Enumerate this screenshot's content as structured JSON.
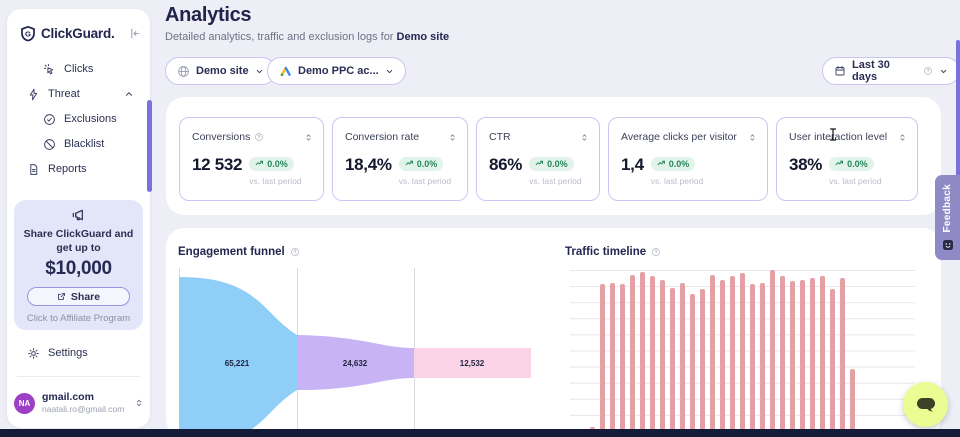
{
  "colors": {
    "bg": "#edeef6",
    "navy": "#23264f",
    "accent-purple": "#7b70e0",
    "border-purple": "#cbc6f3",
    "promo-bg": "#e2e6f8",
    "badge-bg": "#e2f4e9",
    "badge-green": "#27855c",
    "funnel-blue": "#8fcef7",
    "funnel-purple": "#c8b4f4",
    "funnel-pink": "#fbd3e7",
    "bar-pink": "#e5a0a5",
    "strip": "#141b38",
    "feedback-bg": "#8f89c6",
    "chat-bg": "#eafc92",
    "avatar-bg": "#9b3fc4"
  },
  "sidebar": {
    "logo_text": "ClickGuard.",
    "logo_monogram": "G",
    "nav": [
      {
        "label": "Clicks"
      },
      {
        "label": "Threat"
      },
      {
        "label": "Exclusions"
      },
      {
        "label": "Blacklist"
      },
      {
        "label": "Reports"
      }
    ],
    "promo": {
      "line1": "Share ClickGuard and",
      "line2": "get up to",
      "amount": "$10,000",
      "share_label": "Share",
      "footer": "Click to Affiliate Program"
    },
    "settings_label": "Settings",
    "user": {
      "initials": "NA",
      "name": "gmail.com",
      "email": "naatali.ro@gmail.com"
    }
  },
  "header": {
    "title": "Analytics",
    "subtitle_prefix": "Detailed analytics, traffic and exclusion logs for ",
    "subtitle_target": "Demo site",
    "site_selector_label": "Demo site",
    "account_selector_label": "Demo PPC ac...",
    "date_range_label": "Last 30 days"
  },
  "kpis": [
    {
      "label": "Conversions",
      "value": "12 532",
      "change": "0.0%",
      "compare_label": "vs. last period"
    },
    {
      "label": "Conversion rate",
      "value": "18,4%",
      "change": "0.0%",
      "compare_label": "vs. last period"
    },
    {
      "label": "CTR",
      "value": "86%",
      "change": "0.0%",
      "compare_label": "vs. last period"
    },
    {
      "label": "Average clicks per visitor",
      "value": "1,4",
      "change": "0.0%",
      "compare_label": "vs. last period"
    },
    {
      "label": "User interaction level",
      "value": "38%",
      "change": "0.0%",
      "compare_label": "vs. last period"
    }
  ],
  "feedback_label": "Feedback",
  "chart_data": [
    {
      "type": "funnel",
      "title": "Engagement funnel",
      "stages": [
        {
          "label": "65,221",
          "value": 65221,
          "color": "#8fcef7"
        },
        {
          "label": "24,632",
          "value": 24632,
          "color": "#c8b4f4"
        },
        {
          "label": "12,532",
          "value": 12532,
          "color": "#fbd3e7"
        }
      ]
    },
    {
      "type": "bar",
      "title": "Traffic timeline",
      "values_pct": [
        1,
        91,
        92,
        91,
        97,
        99,
        96,
        94,
        89,
        92,
        85,
        88,
        97,
        94,
        96,
        98,
        91,
        92,
        100,
        96,
        93,
        94,
        95,
        96,
        88,
        95,
        38
      ],
      "ylim_pct": [
        0,
        100
      ],
      "grid": "horizontal",
      "legend": false
    }
  ]
}
